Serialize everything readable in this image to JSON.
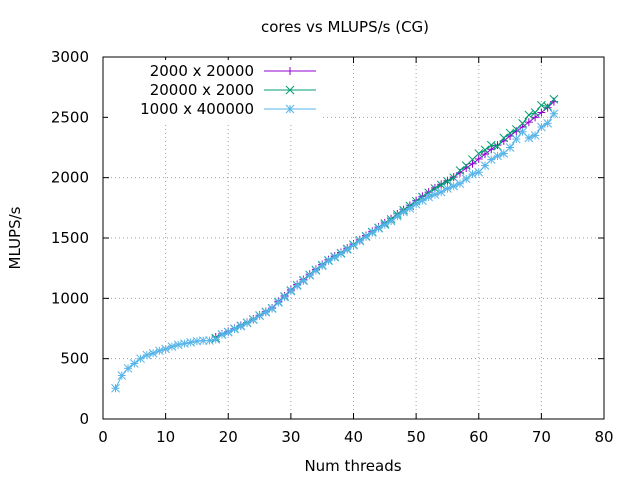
{
  "chart_data": {
    "type": "line",
    "title": "cores vs MLUPS/s (CG)",
    "xlabel": "Num threads",
    "ylabel": "MLUPS/s",
    "xlim": [
      0,
      80
    ],
    "ylim": [
      0,
      3000
    ],
    "xticks": [
      0,
      10,
      20,
      30,
      40,
      50,
      60,
      70,
      80
    ],
    "yticks": [
      0,
      500,
      1000,
      1500,
      2000,
      2500,
      3000
    ],
    "grid": true,
    "legend_position": "top-left",
    "series": [
      {
        "name": "2000 x 20000",
        "color": "#9400d3",
        "marker": "plus",
        "points": [
          [
            18,
            680
          ],
          [
            19,
            705
          ],
          [
            20,
            725
          ],
          [
            21,
            750
          ],
          [
            22,
            775
          ],
          [
            23,
            800
          ],
          [
            24,
            828
          ],
          [
            25,
            860
          ],
          [
            26,
            890
          ],
          [
            27,
            920
          ],
          [
            28,
            975
          ],
          [
            29,
            1020
          ],
          [
            30,
            1070
          ],
          [
            31,
            1115
          ],
          [
            32,
            1155
          ],
          [
            33,
            1200
          ],
          [
            34,
            1240
          ],
          [
            35,
            1280
          ],
          [
            36,
            1320
          ],
          [
            37,
            1350
          ],
          [
            38,
            1380
          ],
          [
            39,
            1415
          ],
          [
            40,
            1450
          ],
          [
            41,
            1485
          ],
          [
            42,
            1520
          ],
          [
            43,
            1555
          ],
          [
            44,
            1590
          ],
          [
            45,
            1625
          ],
          [
            46,
            1660
          ],
          [
            47,
            1700
          ],
          [
            48,
            1735
          ],
          [
            49,
            1770
          ],
          [
            50,
            1810
          ],
          [
            51,
            1845
          ],
          [
            52,
            1880
          ],
          [
            53,
            1915
          ],
          [
            54,
            1945
          ],
          [
            55,
            1975
          ],
          [
            56,
            2005
          ],
          [
            57,
            2040
          ],
          [
            58,
            2080
          ],
          [
            59,
            2115
          ],
          [
            60,
            2155
          ],
          [
            61,
            2195
          ],
          [
            62,
            2235
          ],
          [
            63,
            2270
          ],
          [
            64,
            2305
          ],
          [
            65,
            2345
          ],
          [
            66,
            2385
          ],
          [
            67,
            2420
          ],
          [
            68,
            2460
          ],
          [
            69,
            2500
          ],
          [
            70,
            2540
          ],
          [
            71,
            2580
          ],
          [
            72,
            2630
          ]
        ]
      },
      {
        "name": "20000 x 2000",
        "color": "#009e73",
        "marker": "cross",
        "points": [
          [
            18,
            670
          ],
          [
            19,
            700
          ],
          [
            20,
            720
          ],
          [
            21,
            748
          ],
          [
            22,
            773
          ],
          [
            23,
            798
          ],
          [
            24,
            825
          ],
          [
            25,
            858
          ],
          [
            26,
            888
          ],
          [
            27,
            918
          ],
          [
            28,
            970
          ],
          [
            29,
            1015
          ],
          [
            30,
            1065
          ],
          [
            31,
            1110
          ],
          [
            32,
            1150
          ],
          [
            33,
            1195
          ],
          [
            34,
            1235
          ],
          [
            35,
            1275
          ],
          [
            36,
            1315
          ],
          [
            37,
            1345
          ],
          [
            38,
            1375
          ],
          [
            39,
            1410
          ],
          [
            40,
            1445
          ],
          [
            41,
            1480
          ],
          [
            42,
            1515
          ],
          [
            43,
            1550
          ],
          [
            44,
            1585
          ],
          [
            45,
            1620
          ],
          [
            46,
            1655
          ],
          [
            47,
            1695
          ],
          [
            48,
            1730
          ],
          [
            49,
            1765
          ],
          [
            50,
            1805
          ],
          [
            51,
            1840
          ],
          [
            52,
            1875
          ],
          [
            53,
            1910
          ],
          [
            54,
            1940
          ],
          [
            55,
            1970
          ],
          [
            56,
            2000
          ],
          [
            57,
            2060
          ],
          [
            58,
            2100
          ],
          [
            59,
            2150
          ],
          [
            60,
            2200
          ],
          [
            61,
            2230
          ],
          [
            62,
            2270
          ],
          [
            63,
            2260
          ],
          [
            64,
            2330
          ],
          [
            65,
            2370
          ],
          [
            66,
            2400
          ],
          [
            67,
            2450
          ],
          [
            68,
            2520
          ],
          [
            69,
            2540
          ],
          [
            70,
            2600
          ],
          [
            71,
            2590
          ],
          [
            72,
            2650
          ]
        ]
      },
      {
        "name": "1000 x 400000",
        "color": "#56b4e9",
        "marker": "star",
        "points": [
          [
            2,
            255
          ],
          [
            3,
            360
          ],
          [
            4,
            420
          ],
          [
            5,
            460
          ],
          [
            6,
            500
          ],
          [
            7,
            530
          ],
          [
            8,
            545
          ],
          [
            9,
            565
          ],
          [
            10,
            580
          ],
          [
            11,
            600
          ],
          [
            12,
            615
          ],
          [
            13,
            625
          ],
          [
            14,
            635
          ],
          [
            15,
            645
          ],
          [
            16,
            650
          ],
          [
            17,
            650
          ],
          [
            18,
            660
          ],
          [
            19,
            700
          ],
          [
            20,
            720
          ],
          [
            21,
            745
          ],
          [
            22,
            770
          ],
          [
            23,
            795
          ],
          [
            24,
            822
          ],
          [
            25,
            855
          ],
          [
            26,
            885
          ],
          [
            27,
            915
          ],
          [
            28,
            965
          ],
          [
            29,
            1010
          ],
          [
            30,
            1060
          ],
          [
            31,
            1105
          ],
          [
            32,
            1145
          ],
          [
            33,
            1190
          ],
          [
            34,
            1230
          ],
          [
            35,
            1270
          ],
          [
            36,
            1310
          ],
          [
            37,
            1340
          ],
          [
            38,
            1370
          ],
          [
            39,
            1405
          ],
          [
            40,
            1440
          ],
          [
            41,
            1475
          ],
          [
            42,
            1510
          ],
          [
            43,
            1545
          ],
          [
            44,
            1580
          ],
          [
            45,
            1610
          ],
          [
            46,
            1640
          ],
          [
            47,
            1680
          ],
          [
            48,
            1715
          ],
          [
            49,
            1745
          ],
          [
            50,
            1780
          ],
          [
            51,
            1810
          ],
          [
            52,
            1840
          ],
          [
            53,
            1860
          ],
          [
            54,
            1880
          ],
          [
            55,
            1910
          ],
          [
            56,
            1930
          ],
          [
            57,
            1950
          ],
          [
            58,
            1990
          ],
          [
            59,
            2030
          ],
          [
            60,
            2045
          ],
          [
            61,
            2100
          ],
          [
            62,
            2150
          ],
          [
            63,
            2180
          ],
          [
            64,
            2200
          ],
          [
            65,
            2250
          ],
          [
            66,
            2320
          ],
          [
            67,
            2380
          ],
          [
            68,
            2330
          ],
          [
            69,
            2350
          ],
          [
            70,
            2420
          ],
          [
            71,
            2450
          ],
          [
            72,
            2530
          ]
        ]
      }
    ]
  }
}
